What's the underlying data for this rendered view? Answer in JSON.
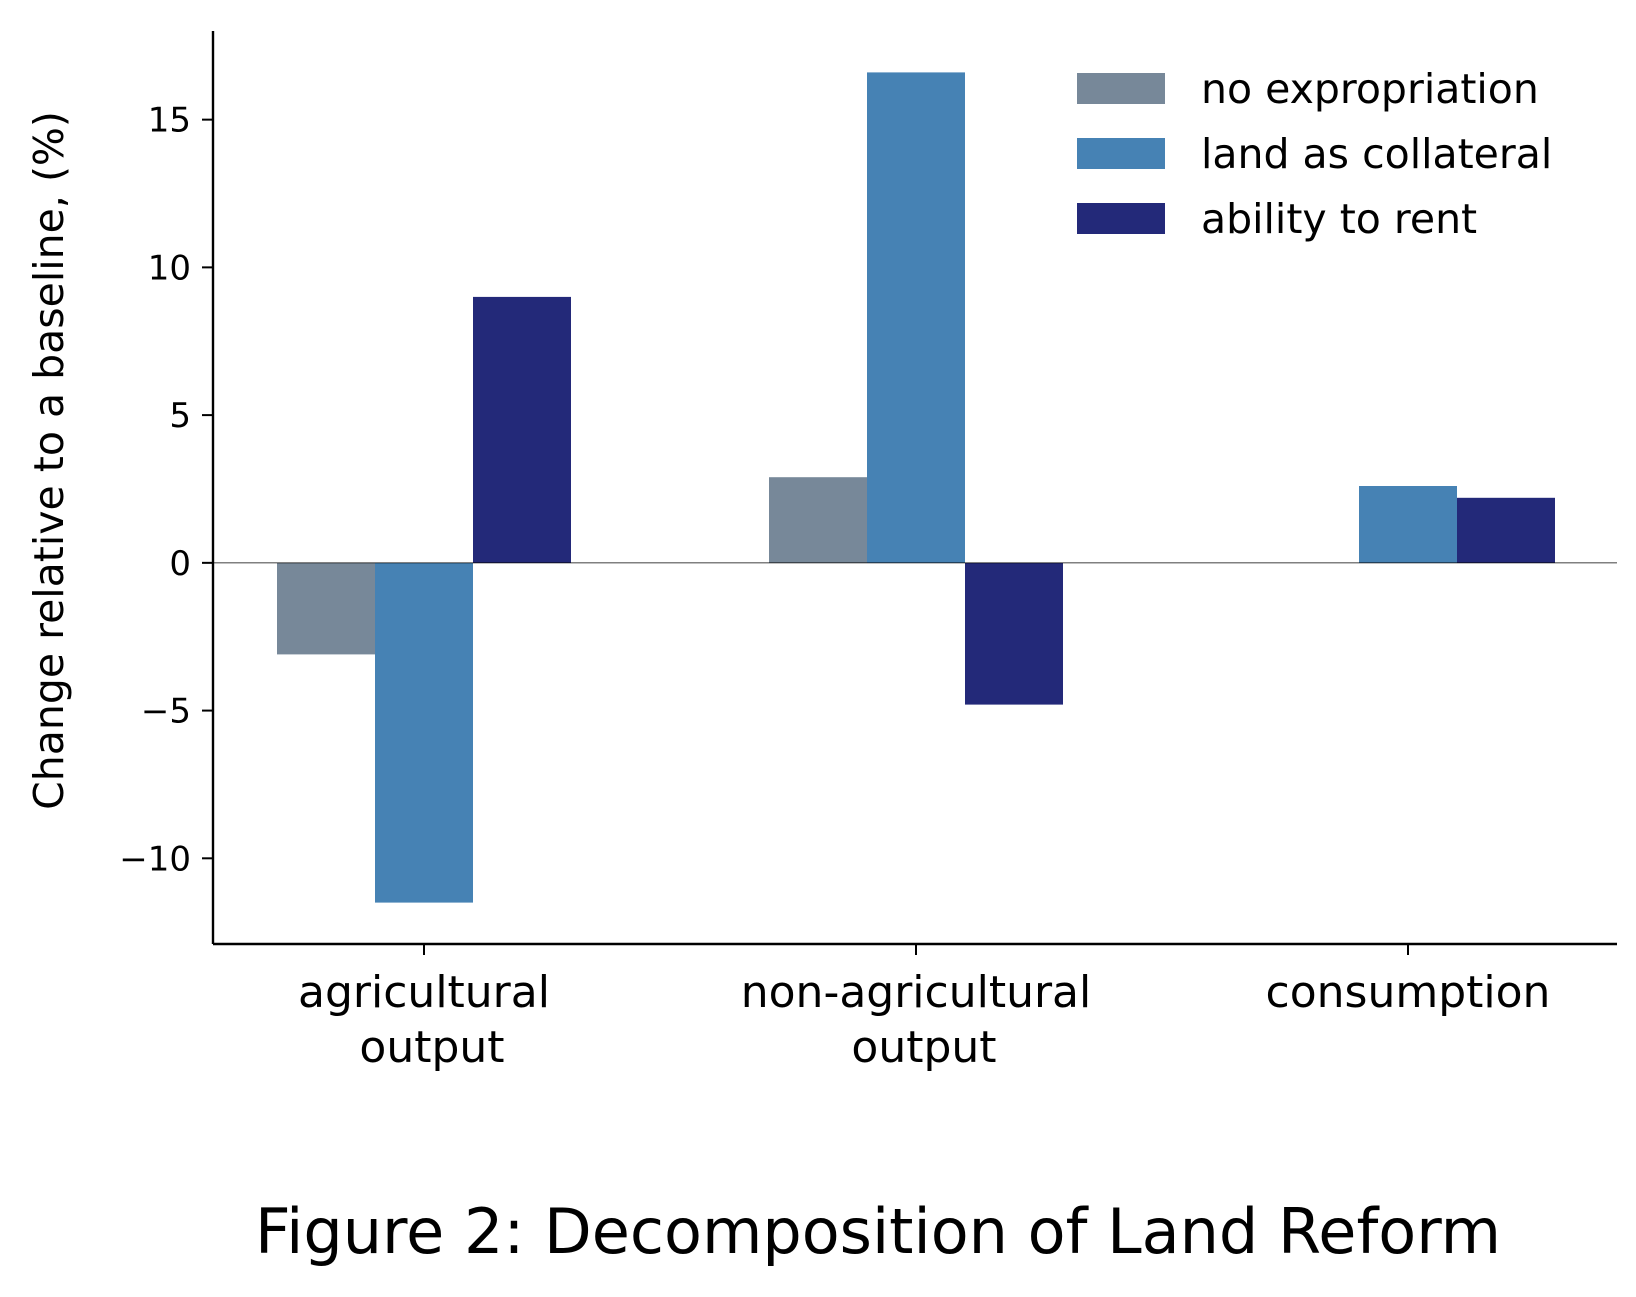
{
  "caption": "Figure 2: Decomposition of Land Reform",
  "chart_data": {
    "type": "bar",
    "title": "",
    "xlabel": "",
    "ylabel": "Change relative to a baseline, (%)",
    "categories": [
      [
        "agricultural",
        "output"
      ],
      [
        "non-agricultural",
        "output"
      ],
      [
        "consumption"
      ]
    ],
    "series": [
      {
        "name": "no expropriation",
        "color": "#778899",
        "values": [
          -3.1,
          2.9,
          0
        ]
      },
      {
        "name": "land as collateral",
        "color": "#4682b4",
        "values": [
          -11.5,
          16.6,
          2.6
        ]
      },
      {
        "name": "ability to rent",
        "color": "#232979",
        "values": [
          9.0,
          -4.8,
          2.2
        ]
      }
    ],
    "ylim": [
      -12.9,
      18.0
    ],
    "yticks": [
      -10,
      -5,
      0,
      5,
      10,
      15
    ],
    "ytick_labels": [
      "−10",
      "−5",
      "0",
      "5",
      "10",
      "15"
    ],
    "legend_position": "top-right",
    "grid": false,
    "zero_line": true
  }
}
